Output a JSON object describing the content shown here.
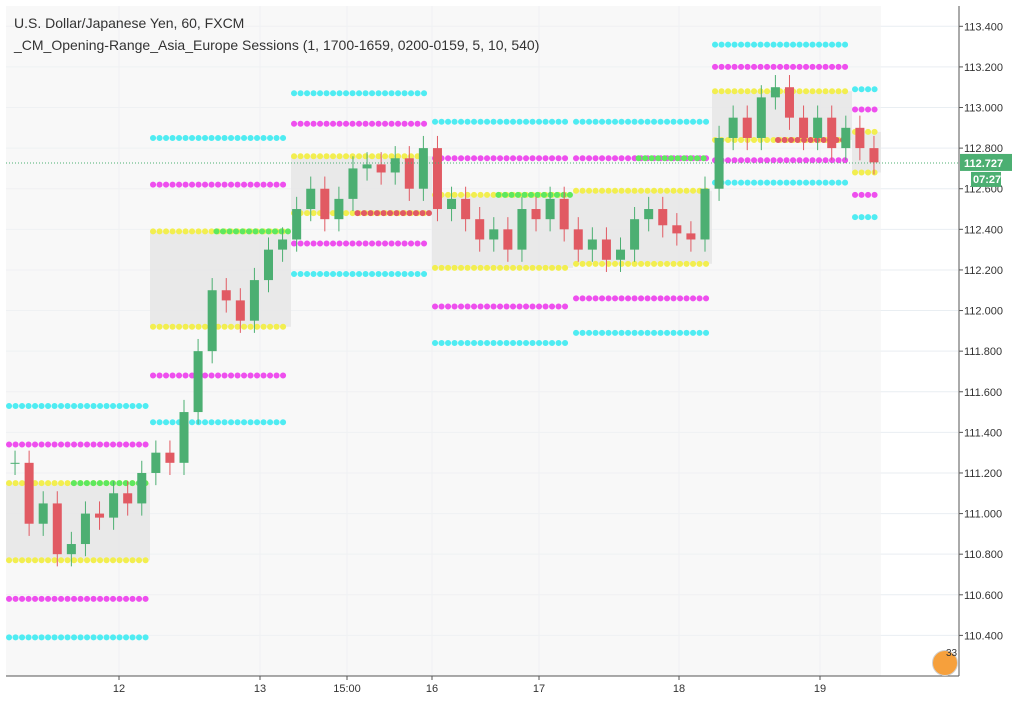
{
  "legend": {
    "symbol": "U.S. Dollar/Japanese Yen, 60, FXCM",
    "indicator": "_CM_Opening-Range_Asia_Europe Sessions (1, 1700-1659, 0200-0159, 5, 10, 540)"
  },
  "price_axis": {
    "last_price": "112.727",
    "countdown": "07:27"
  },
  "badge_number": "33",
  "colors": {
    "up": "#4caf72",
    "down": "#e15a63",
    "range_yellow": "#f2ee4f",
    "green_dots": "#5ee85e",
    "magenta_dots": "#ee4fee",
    "cyan_dots": "#4fecf2",
    "range_fill": "#e6e6e6",
    "last_price_bg": "#4caf72"
  },
  "chart_data": {
    "type": "candlestick",
    "x_ticks": [
      "12",
      "13",
      "15:00",
      "16",
      "17",
      "18",
      "19"
    ],
    "y_ticks": [
      "110.400",
      "110.600",
      "110.800",
      "111.000",
      "111.200",
      "111.400",
      "111.600",
      "111.800",
      "112.000",
      "112.200",
      "112.400",
      "112.600",
      "112.800",
      "113.000",
      "113.200",
      "113.400"
    ],
    "ylim": [
      110.2,
      113.5
    ],
    "sessions": [
      {
        "range_high": 111.15,
        "range_low": 110.77,
        "mid": 111.15,
        "mid_color": "green",
        "magenta_upper": 111.34,
        "magenta_lower": 110.58,
        "cyan_upper": 111.53,
        "cyan_lower": 110.39
      },
      {
        "range_high": 112.39,
        "range_low": 111.92,
        "mid": 112.39,
        "mid_color": "green",
        "magenta_upper": 112.62,
        "magenta_lower": 111.68,
        "cyan_upper": 112.85,
        "cyan_lower": 111.45
      },
      {
        "range_high": 112.76,
        "range_low": 112.48,
        "mid": 112.48,
        "mid_color": "red",
        "magenta_upper": 112.92,
        "magenta_lower": 112.33,
        "cyan_upper": 113.07,
        "cyan_lower": 112.18
      },
      {
        "range_high": 112.57,
        "range_low": 112.21,
        "mid": 112.57,
        "mid_color": "green",
        "magenta_upper": 112.75,
        "magenta_lower": 112.02,
        "cyan_upper": 112.93,
        "cyan_lower": 111.84
      },
      {
        "range_high": 112.59,
        "range_low": 112.23,
        "mid": 112.75,
        "mid_color": "green",
        "magenta_upper": 112.75,
        "magenta_lower": 112.06,
        "cyan_upper": 112.93,
        "cyan_lower": 111.89
      },
      {
        "range_high": 113.08,
        "range_low": 112.84,
        "mid": 112.84,
        "mid_color": "red",
        "magenta_upper": 113.2,
        "magenta_lower": 112.74,
        "cyan_upper": 113.31,
        "cyan_lower": 112.63
      },
      {
        "range_high": 112.88,
        "range_low": 112.68,
        "mid": null,
        "mid_color": "none",
        "magenta_upper": 112.99,
        "magenta_lower": 112.57,
        "cyan_upper": 113.09,
        "cyan_lower": 112.46
      }
    ],
    "price_path": [
      111.25,
      110.95,
      111.05,
      110.8,
      110.85,
      111.0,
      110.98,
      111.1,
      111.05,
      111.2,
      111.3,
      111.25,
      111.5,
      111.8,
      112.1,
      112.05,
      111.95,
      112.15,
      112.3,
      112.35,
      112.5,
      112.6,
      112.45,
      112.55,
      112.7,
      112.72,
      112.68,
      112.75,
      112.6,
      112.8,
      112.5,
      112.55,
      112.45,
      112.35,
      112.4,
      112.3,
      112.5,
      112.45,
      112.55,
      112.4,
      112.3,
      112.35,
      112.25,
      112.3,
      112.45,
      112.5,
      112.42,
      112.38,
      112.35,
      112.6,
      112.85,
      112.95,
      112.85,
      113.05,
      113.1,
      112.95,
      112.85,
      112.95,
      112.8,
      112.9,
      112.8,
      112.73
    ]
  }
}
